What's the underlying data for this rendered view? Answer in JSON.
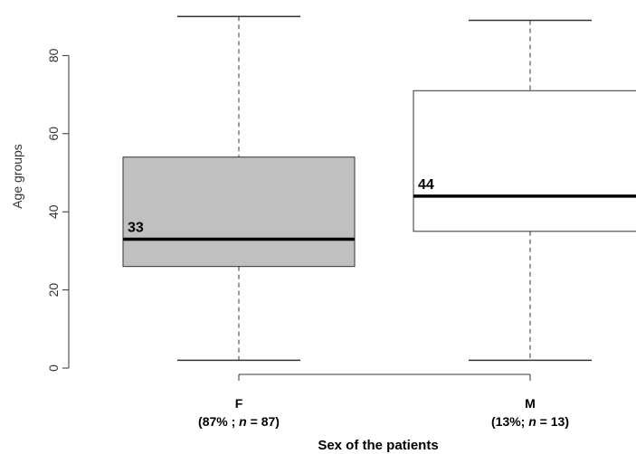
{
  "chart_data": {
    "type": "boxplot",
    "title": "",
    "xlabel": "Sex of the patients",
    "ylabel": "Age groups",
    "ylim": [
      0,
      90
    ],
    "yticks": [
      0,
      20,
      40,
      60,
      80
    ],
    "grid": false,
    "boxes": [
      {
        "category": "F",
        "subtitle_prefix": "(87% ; ",
        "subtitle_n": "n",
        "subtitle_suffix": " = 87)",
        "whisker_low": 2,
        "q1": 26,
        "median": 33,
        "q3": 54,
        "whisker_high": 90,
        "median_label": "33",
        "fill": "#c0c0c0"
      },
      {
        "category": "M",
        "subtitle_prefix": "(13%; ",
        "subtitle_n": "n",
        "subtitle_suffix": " = 13)",
        "whisker_low": 2,
        "q1": 35,
        "median": 44,
        "q3": 71,
        "whisker_high": 89,
        "median_label": "44",
        "fill": "#ffffff"
      }
    ]
  }
}
